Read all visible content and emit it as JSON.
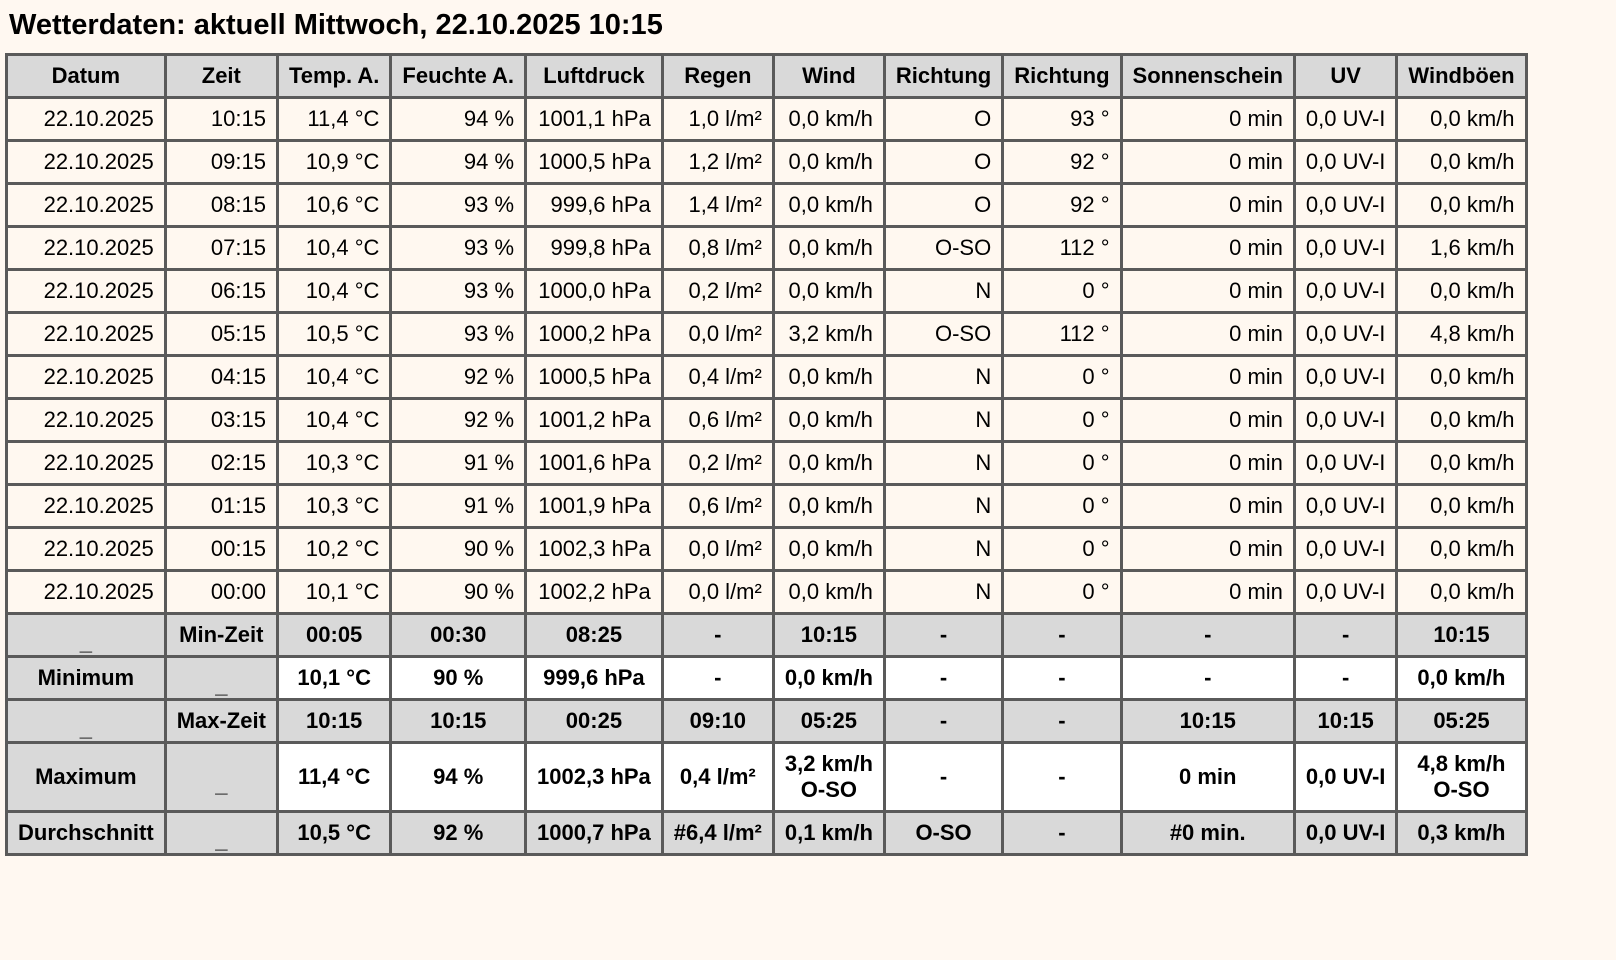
{
  "title": "Wetterdaten: aktuell Mittwoch, 22.10.2025 10:15",
  "columns": [
    "Datum",
    "Zeit",
    "Temp. A.",
    "Feuchte A.",
    "Luftdruck",
    "Regen",
    "Wind",
    "Richtung",
    "Richtung",
    "Sonnenschein",
    "UV",
    "Windböen"
  ],
  "rows": [
    [
      "22.10.2025",
      "10:15",
      "11,4 °C",
      "94 %",
      "1001,1 hPa",
      "1,0 l/m²",
      "0,0 km/h",
      "O",
      "93 °",
      "0 min",
      "0,0 UV-I",
      "0,0 km/h"
    ],
    [
      "22.10.2025",
      "09:15",
      "10,9 °C",
      "94 %",
      "1000,5 hPa",
      "1,2 l/m²",
      "0,0 km/h",
      "O",
      "92 °",
      "0 min",
      "0,0 UV-I",
      "0,0 km/h"
    ],
    [
      "22.10.2025",
      "08:15",
      "10,6 °C",
      "93 %",
      "999,6 hPa",
      "1,4 l/m²",
      "0,0 km/h",
      "O",
      "92 °",
      "0 min",
      "0,0 UV-I",
      "0,0 km/h"
    ],
    [
      "22.10.2025",
      "07:15",
      "10,4 °C",
      "93 %",
      "999,8 hPa",
      "0,8 l/m²",
      "0,0 km/h",
      "O-SO",
      "112 °",
      "0 min",
      "0,0 UV-I",
      "1,6 km/h"
    ],
    [
      "22.10.2025",
      "06:15",
      "10,4 °C",
      "93 %",
      "1000,0 hPa",
      "0,2 l/m²",
      "0,0 km/h",
      "N",
      "0 °",
      "0 min",
      "0,0 UV-I",
      "0,0 km/h"
    ],
    [
      "22.10.2025",
      "05:15",
      "10,5 °C",
      "93 %",
      "1000,2 hPa",
      "0,0 l/m²",
      "3,2 km/h",
      "O-SO",
      "112 °",
      "0 min",
      "0,0 UV-I",
      "4,8 km/h"
    ],
    [
      "22.10.2025",
      "04:15",
      "10,4 °C",
      "92 %",
      "1000,5 hPa",
      "0,4 l/m²",
      "0,0 km/h",
      "N",
      "0 °",
      "0 min",
      "0,0 UV-I",
      "0,0 km/h"
    ],
    [
      "22.10.2025",
      "03:15",
      "10,4 °C",
      "92 %",
      "1001,2 hPa",
      "0,6 l/m²",
      "0,0 km/h",
      "N",
      "0 °",
      "0 min",
      "0,0 UV-I",
      "0,0 km/h"
    ],
    [
      "22.10.2025",
      "02:15",
      "10,3 °C",
      "91 %",
      "1001,6 hPa",
      "0,2 l/m²",
      "0,0 km/h",
      "N",
      "0 °",
      "0 min",
      "0,0 UV-I",
      "0,0 km/h"
    ],
    [
      "22.10.2025",
      "01:15",
      "10,3 °C",
      "91 %",
      "1001,9 hPa",
      "0,6 l/m²",
      "0,0 km/h",
      "N",
      "0 °",
      "0 min",
      "0,0 UV-I",
      "0,0 km/h"
    ],
    [
      "22.10.2025",
      "00:15",
      "10,2 °C",
      "90 %",
      "1002,3 hPa",
      "0,0 l/m²",
      "0,0 km/h",
      "N",
      "0 °",
      "0 min",
      "0,0 UV-I",
      "0,0 km/h"
    ],
    [
      "22.10.2025",
      "00:00",
      "10,1 °C",
      "90 %",
      "1002,2 hPa",
      "0,0 l/m²",
      "0,0 km/h",
      "N",
      "0 °",
      "0 min",
      "0,0 UV-I",
      "0,0 km/h"
    ]
  ],
  "summary": [
    {
      "kind": "time",
      "cells": [
        "_",
        "Min-Zeit",
        "00:05",
        "00:30",
        "08:25",
        "-",
        "10:15",
        "-",
        "-",
        "-",
        "-",
        "10:15"
      ]
    },
    {
      "kind": "value",
      "cells": [
        "Minimum",
        "_",
        "10,1 °C",
        "90 %",
        "999,6 hPa",
        "-",
        "0,0 km/h",
        "-",
        "-",
        "-",
        "-",
        "0,0 km/h"
      ]
    },
    {
      "kind": "time",
      "cells": [
        "_",
        "Max-Zeit",
        "10:15",
        "10:15",
        "00:25",
        "09:10",
        "05:25",
        "-",
        "-",
        "10:15",
        "10:15",
        "05:25"
      ]
    },
    {
      "kind": "value",
      "tall": true,
      "cells": [
        "Maximum",
        "_",
        "11,4 °C",
        "94 %",
        "1002,3 hPa",
        "0,4 l/m²",
        "3,2 km/h\nO-SO",
        "-",
        "-",
        "0 min",
        "0,0 UV-I",
        "4,8 km/h\nO-SO"
      ]
    },
    {
      "kind": "avg",
      "cells": [
        "Durchschnitt",
        "_",
        "10,5 °C",
        "92 %",
        "1000,7 hPa",
        "#6,4 l/m²",
        "0,1 km/h",
        "O-SO",
        "-",
        "#0 min.",
        "0,0 UV-I",
        "0,3 km/h"
      ]
    }
  ],
  "colors": {
    "background": "#fff8f1",
    "header": "#d9d9d9",
    "cell": "#fff8f0",
    "highlight": "#ffffff",
    "border": "#5a5a5a"
  }
}
